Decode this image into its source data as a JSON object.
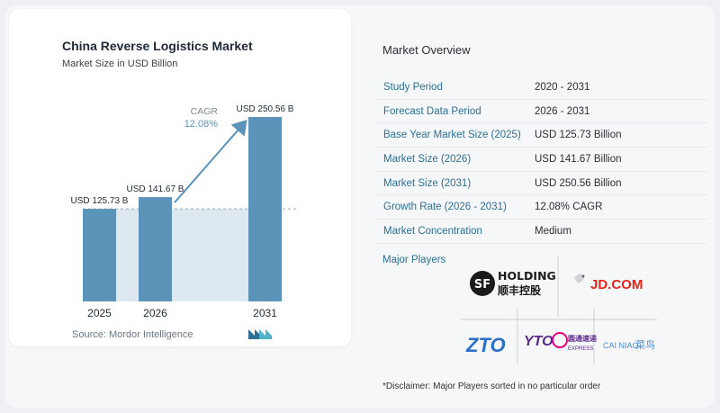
{
  "chart": {
    "title": "China Reverse Logistics Market",
    "subtitle": "Market Size in USD Billion",
    "source": "Source: Mordor Intelligence",
    "cagr_label": "CAGR",
    "cagr_value": "12.08%"
  },
  "chart_data": {
    "type": "bar",
    "title": "China Reverse Logistics Market",
    "subtitle": "Market Size in USD Billion",
    "categories": [
      "2025",
      "2026",
      "2031"
    ],
    "values": [
      125.73,
      141.67,
      250.56
    ],
    "data_labels": [
      "USD 125.73 B",
      "USD 141.67 B",
      "USD 250.56 B"
    ],
    "ylim": [
      0,
      250.56
    ],
    "grid": false,
    "annotation": {
      "label": "CAGR",
      "value": "12.08%"
    },
    "colors": {
      "bar": "#5b93b9",
      "band": "#dde8f1",
      "arrow": "#5b93b9"
    }
  },
  "overview": {
    "title": "Market Overview",
    "rows": [
      {
        "label": "Study Period",
        "value": "2020 - 2031"
      },
      {
        "label": "Forecast Data Period",
        "value": "2026 - 2031"
      },
      {
        "label": "Base Year Market Size (2025)",
        "value": "USD 125.73 Billion"
      },
      {
        "label": "Market Size (2026)",
        "value": "USD 141.67 Billion"
      },
      {
        "label": "Market Size (2031)",
        "value": "USD 250.56 Billion"
      },
      {
        "label": "Growth Rate (2026 - 2031)",
        "value": "12.08% CAGR"
      },
      {
        "label": "Market Concentration",
        "value": "Medium"
      }
    ]
  },
  "players": {
    "title": "Major Players",
    "logos": [
      {
        "name": "sf-holding-logo",
        "text": "HOLDING",
        "cn": "顺丰控股",
        "mark": "SF"
      },
      {
        "name": "jd-logo",
        "text": "JD.COM"
      },
      {
        "name": "zto-logo",
        "text": "ZTO"
      },
      {
        "name": "yto-logo",
        "text": "YTO",
        "cn": "圆通速递",
        "sub": "EXPRESS"
      },
      {
        "name": "cainiao-logo",
        "text": "CAI NIAO",
        "cn": "菜鸟"
      }
    ]
  },
  "disclaimer": "*Disclaimer: Major Players sorted in no particular order"
}
